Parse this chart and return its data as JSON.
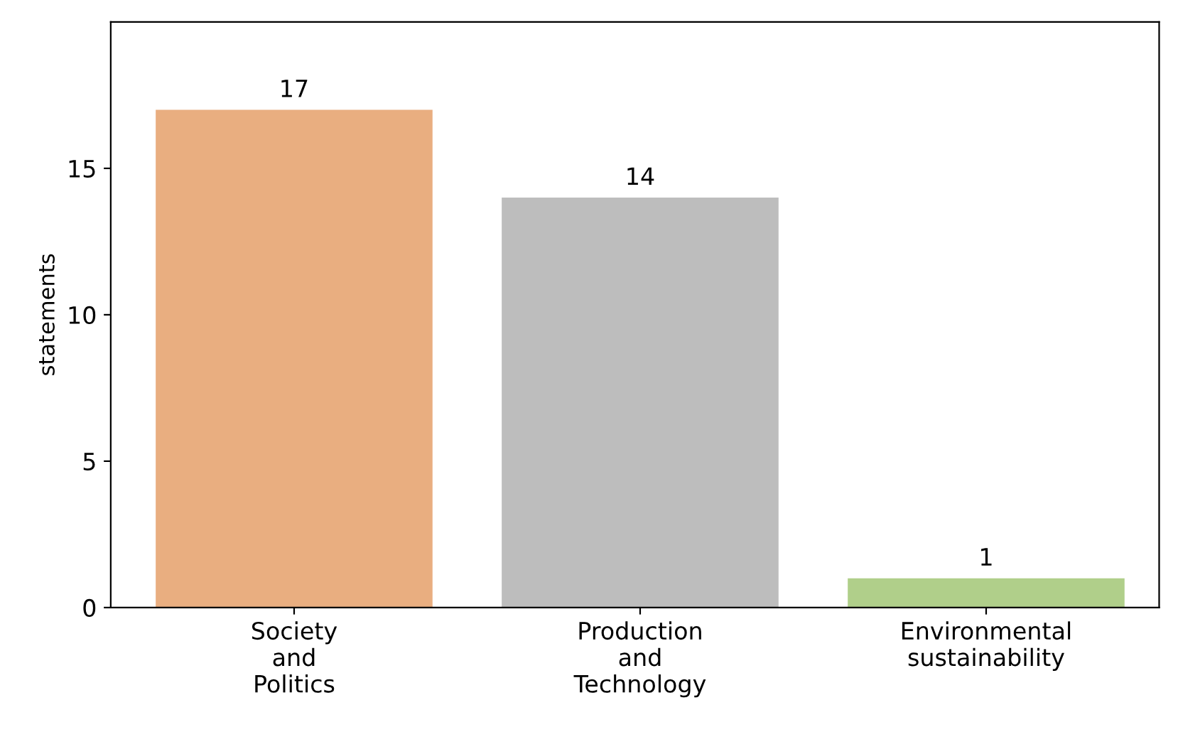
{
  "chart_data": {
    "type": "bar",
    "ylabel": "statements",
    "categories": [
      "Society\nand\nPolitics",
      "Production\nand\nTechnology",
      "Environmental\nsustainability"
    ],
    "values": [
      17,
      14,
      1
    ],
    "colors": [
      "#e9ae80",
      "#bdbdbd",
      "#b0cf8a"
    ],
    "ylim": [
      0,
      20
    ],
    "yticks": [
      0,
      5,
      10,
      15
    ],
    "data_labels": true,
    "grid": false,
    "legend": false
  }
}
